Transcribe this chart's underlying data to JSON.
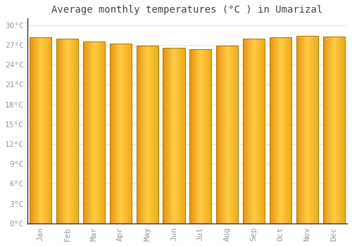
{
  "title": "Average monthly temperatures (°C ) in Umarizal",
  "months": [
    "Jan",
    "Feb",
    "Mar",
    "Apr",
    "May",
    "Jun",
    "Jul",
    "Aug",
    "Sep",
    "Oct",
    "Nov",
    "Dec"
  ],
  "values": [
    28.2,
    27.9,
    27.5,
    27.2,
    26.9,
    26.6,
    26.3,
    26.9,
    28.0,
    28.2,
    28.4,
    28.3
  ],
  "bar_color_left": "#E8920A",
  "bar_color_right": "#FFCC33",
  "background_color": "#FFFFFF",
  "grid_color": "#DDDDDD",
  "ylim": [
    0,
    31
  ],
  "yticks": [
    0,
    3,
    6,
    9,
    12,
    15,
    18,
    21,
    24,
    27,
    30
  ],
  "ytick_labels": [
    "0°C",
    "3°C",
    "6°C",
    "9°C",
    "12°C",
    "15°C",
    "18°C",
    "21°C",
    "24°C",
    "27°C",
    "30°C"
  ],
  "title_fontsize": 10,
  "tick_fontsize": 8,
  "font_color": "#999999",
  "bar_edge_color": "#AA7700",
  "bar_width": 0.82,
  "axis_line_color": "#333333"
}
